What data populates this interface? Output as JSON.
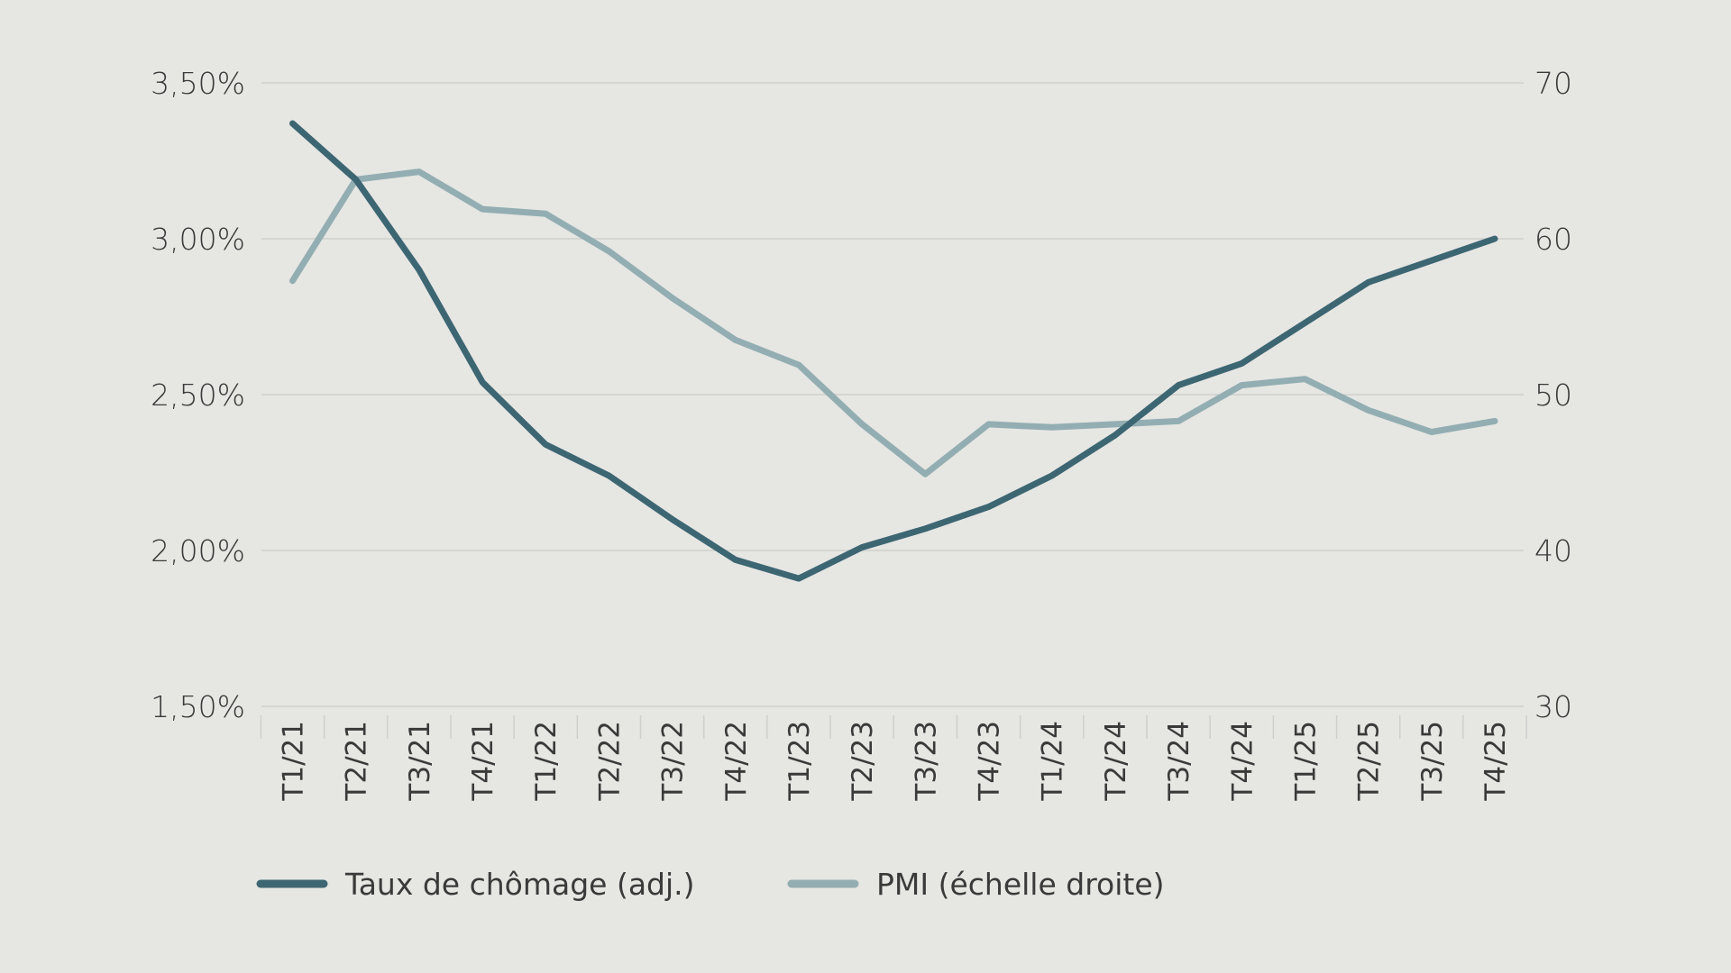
{
  "chart_data": {
    "type": "line",
    "title": "",
    "categories": [
      "T1/21",
      "T2/21",
      "T3/21",
      "T4/21",
      "T1/22",
      "T2/22",
      "T3/22",
      "T4/22",
      "T1/23",
      "T2/23",
      "T3/23",
      "T4/23",
      "T1/24",
      "T2/24",
      "T3/24",
      "T4/24",
      "T1/25",
      "T2/25",
      "T3/25",
      "T4/25"
    ],
    "left_axis": {
      "ylim": [
        1.5,
        3.5
      ],
      "ticks": [
        1.5,
        2.0,
        2.5,
        3.0,
        3.5
      ],
      "tick_labels": [
        "1,50%",
        "2,00%",
        "2,50%",
        "3,00%",
        "3,50%"
      ]
    },
    "right_axis": {
      "ylim": [
        30,
        70
      ],
      "ticks": [
        30,
        40,
        50,
        60,
        70
      ],
      "tick_labels": [
        "30",
        "40",
        "50",
        "60",
        "70"
      ]
    },
    "grid": true,
    "legend_position": "bottom",
    "series": [
      {
        "name": "Taux de chômage (adj.)",
        "axis": "left",
        "color": "#3d6673",
        "values": [
          3.37,
          3.19,
          2.9,
          2.54,
          2.34,
          2.24,
          2.1,
          1.97,
          1.91,
          2.01,
          2.07,
          2.14,
          2.24,
          2.37,
          2.53,
          2.6,
          2.73,
          2.86,
          2.93,
          3.0
        ]
      },
      {
        "name": "PMI (échelle droite)",
        "axis": "right",
        "color": "#93aeb2",
        "values": [
          57.3,
          63.8,
          64.3,
          61.9,
          61.6,
          59.2,
          56.2,
          53.5,
          51.9,
          48.1,
          44.9,
          48.1,
          47.9,
          48.1,
          48.3,
          50.6,
          51.0,
          49.0,
          47.6,
          48.3
        ]
      }
    ]
  }
}
